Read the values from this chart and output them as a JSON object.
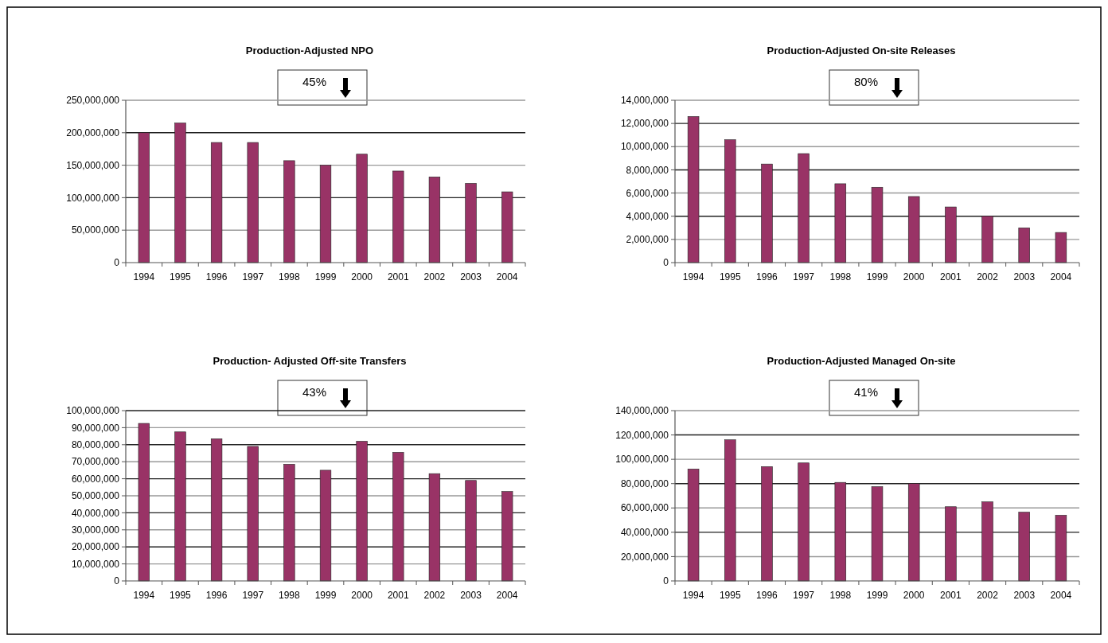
{
  "chart_data": [
    {
      "type": "bar",
      "title": "Production-Adjusted NPO",
      "categories": [
        "1994",
        "1995",
        "1996",
        "1997",
        "1998",
        "1999",
        "2000",
        "2001",
        "2002",
        "2003",
        "2004"
      ],
      "values": [
        200000000,
        215000000,
        185000000,
        185000000,
        157000000,
        150000000,
        167000000,
        141000000,
        132000000,
        122000000,
        109000000
      ],
      "color": "#993366",
      "ylim": [
        0,
        250000000
      ],
      "yticks": [
        {
          "value": 0,
          "label": "0"
        },
        {
          "value": 50000000,
          "label": "50,000,000"
        },
        {
          "value": 100000000,
          "label": "100,000,000"
        },
        {
          "value": 150000000,
          "label": "150,000,000"
        },
        {
          "value": 200000000,
          "label": "200,000,000"
        },
        {
          "value": 250000000,
          "label": "250,000,000"
        }
      ],
      "grid": "y",
      "annotations": [
        "45%"
      ]
    },
    {
      "type": "bar",
      "title": "Production-Adjusted On-site Releases",
      "categories": [
        "1994",
        "1995",
        "1996",
        "1997",
        "1998",
        "1999",
        "2000",
        "2001",
        "2002",
        "2003",
        "2004"
      ],
      "values": [
        12600000,
        10600000,
        8500000,
        9400000,
        6800000,
        6500000,
        5700000,
        4800000,
        4000000,
        3000000,
        2600000
      ],
      "color": "#993366",
      "ylim": [
        0,
        14000000
      ],
      "yticks": [
        {
          "value": 0,
          "label": "0"
        },
        {
          "value": 2000000,
          "label": "2,000,000"
        },
        {
          "value": 4000000,
          "label": "4,000,000"
        },
        {
          "value": 6000000,
          "label": "6,000,000"
        },
        {
          "value": 8000000,
          "label": "8,000,000"
        },
        {
          "value": 10000000,
          "label": "10,000,000"
        },
        {
          "value": 12000000,
          "label": "12,000,000"
        },
        {
          "value": 14000000,
          "label": "14,000,000"
        }
      ],
      "grid": "y",
      "annotations": [
        "80%"
      ]
    },
    {
      "type": "bar",
      "title": "Production- Adjusted Off-site Transfers",
      "categories": [
        "1994",
        "1995",
        "1996",
        "1997",
        "1998",
        "1999",
        "2000",
        "2001",
        "2002",
        "2003",
        "2004"
      ],
      "values": [
        92500000,
        87500000,
        83500000,
        79000000,
        68500000,
        65000000,
        82000000,
        75500000,
        63000000,
        59000000,
        52500000
      ],
      "color": "#993366",
      "ylim": [
        0,
        100000000
      ],
      "yticks": [
        {
          "value": 0,
          "label": "0"
        },
        {
          "value": 10000000,
          "label": "10,000,000"
        },
        {
          "value": 20000000,
          "label": "20,000,000"
        },
        {
          "value": 30000000,
          "label": "30,000,000"
        },
        {
          "value": 40000000,
          "label": "40,000,000"
        },
        {
          "value": 50000000,
          "label": "50,000,000"
        },
        {
          "value": 60000000,
          "label": "60,000,000"
        },
        {
          "value": 70000000,
          "label": "70,000,000"
        },
        {
          "value": 80000000,
          "label": "80,000,000"
        },
        {
          "value": 90000000,
          "label": "90,000,000"
        },
        {
          "value": 100000000,
          "label": "100,000,000"
        }
      ],
      "grid": "y",
      "annotations": [
        "43%"
      ]
    },
    {
      "type": "bar",
      "title": "Production-Adjusted Managed On-site",
      "categories": [
        "1994",
        "1995",
        "1996",
        "1997",
        "1998",
        "1999",
        "2000",
        "2001",
        "2002",
        "2003",
        "2004"
      ],
      "values": [
        92000000,
        116000000,
        94000000,
        97000000,
        81000000,
        77500000,
        80000000,
        61000000,
        65000000,
        56500000,
        54000000
      ],
      "color": "#993366",
      "ylim": [
        0,
        140000000
      ],
      "yticks": [
        {
          "value": 0,
          "label": "0"
        },
        {
          "value": 20000000,
          "label": "20,000,000"
        },
        {
          "value": 40000000,
          "label": "40,000,000"
        },
        {
          "value": 60000000,
          "label": "60,000,000"
        },
        {
          "value": 80000000,
          "label": "80,000,000"
        },
        {
          "value": 100000000,
          "label": "100,000,000"
        },
        {
          "value": 120000000,
          "label": "120,000,000"
        },
        {
          "value": 140000000,
          "label": "140,000,000"
        }
      ],
      "grid": "y",
      "annotations": [
        "41%"
      ]
    }
  ]
}
